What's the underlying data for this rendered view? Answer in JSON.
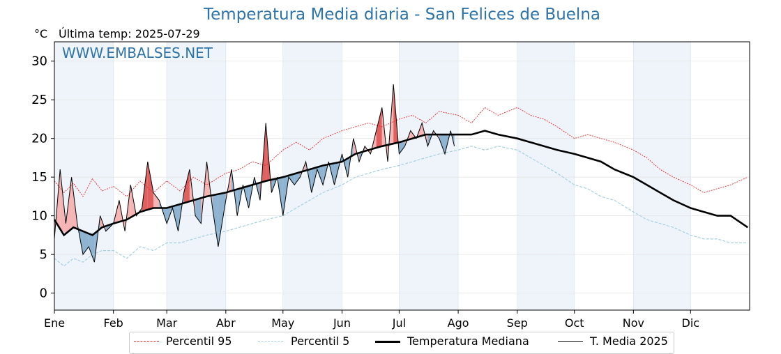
{
  "header": {
    "title": "Temperatura Media diaria - San Felices de Buelna",
    "unit": "°C",
    "last_temp": "Última temp: 2025-07-29",
    "watermark": "WWW.EMBALSES.NET"
  },
  "legend": {
    "p95": "Percentil 95",
    "p5": "Percentil 5",
    "median": "Temperatura Mediana",
    "current": "T. Media 2025"
  },
  "colors": {
    "title": "#2e74a8",
    "p95": "#e8262a",
    "p5": "#a6cfe0",
    "median": "#000000",
    "current": "#000000",
    "above_light": "#f5b5b5",
    "above_strong": "#e06060",
    "below_light": "#8fb4d2",
    "below_strong": "#2c6aa0",
    "band": "#eef4fa"
  },
  "chart_data": {
    "type": "line",
    "title": "Temperatura Media diaria - San Felices de Buelna",
    "xlabel": "",
    "ylabel": "°C",
    "ylim": [
      -2.2,
      32.5
    ],
    "xlim": [
      0,
      365
    ],
    "yticks": [
      0,
      5,
      10,
      15,
      20,
      25,
      30
    ],
    "grid": true,
    "legend_position": "bottom",
    "months": [
      "Ene",
      "Feb",
      "Mar",
      "Abr",
      "May",
      "Jun",
      "Jul",
      "Ago",
      "Sep",
      "Oct",
      "Nov",
      "Dic"
    ],
    "month_starts": [
      0,
      31,
      59,
      90,
      120,
      151,
      181,
      212,
      243,
      273,
      304,
      334
    ],
    "series": [
      {
        "name": "Percentil 95",
        "x": [
          0,
          5,
          10,
          15,
          20,
          25,
          31,
          38,
          45,
          52,
          59,
          66,
          73,
          80,
          90,
          97,
          104,
          111,
          120,
          127,
          134,
          141,
          151,
          158,
          165,
          172,
          181,
          188,
          195,
          202,
          212,
          219,
          226,
          233,
          243,
          250,
          257,
          264,
          273,
          280,
          287,
          294,
          304,
          311,
          318,
          325,
          334,
          341,
          348,
          355,
          364
        ],
        "values": [
          14.5,
          13,
          14.2,
          12.5,
          14.8,
          13.2,
          13.8,
          12.5,
          14.5,
          13,
          14.5,
          13.2,
          15,
          14,
          15.5,
          16,
          17,
          16.5,
          18.5,
          19.5,
          18.5,
          20,
          21,
          21.5,
          22,
          21.5,
          22.5,
          23,
          22,
          23.5,
          23,
          22,
          24,
          23,
          24,
          23,
          22.5,
          21.5,
          20,
          20.5,
          20,
          19.5,
          18.5,
          17.5,
          16,
          15,
          14,
          13,
          13.5,
          14,
          15
        ]
      },
      {
        "name": "Percentil 5",
        "x": [
          0,
          5,
          10,
          15,
          20,
          25,
          31,
          38,
          45,
          52,
          59,
          66,
          73,
          80,
          90,
          97,
          104,
          111,
          120,
          127,
          134,
          141,
          151,
          158,
          165,
          172,
          181,
          188,
          195,
          202,
          212,
          219,
          226,
          233,
          243,
          250,
          257,
          264,
          273,
          280,
          287,
          294,
          304,
          311,
          318,
          325,
          334,
          341,
          348,
          355,
          364
        ],
        "values": [
          4.5,
          3.5,
          4.5,
          4,
          5,
          5.5,
          5.5,
          4.5,
          6,
          5.5,
          6.5,
          6.5,
          7,
          7.5,
          8,
          8.5,
          9,
          9.5,
          10,
          11,
          12,
          13,
          14,
          15,
          15.5,
          16,
          16.5,
          17,
          17.5,
          18,
          18.5,
          19,
          18.5,
          19,
          18.5,
          17.5,
          16.5,
          15.5,
          14,
          13.5,
          12.5,
          12,
          10.5,
          9.5,
          9,
          8.5,
          7.5,
          7,
          7,
          6.5,
          6.5
        ]
      },
      {
        "name": "Temperatura Mediana",
        "x": [
          0,
          5,
          10,
          15,
          20,
          25,
          31,
          38,
          45,
          52,
          59,
          66,
          73,
          80,
          90,
          97,
          104,
          111,
          120,
          127,
          134,
          141,
          151,
          158,
          165,
          172,
          181,
          188,
          195,
          202,
          212,
          219,
          226,
          233,
          243,
          250,
          257,
          264,
          273,
          280,
          287,
          294,
          304,
          311,
          318,
          325,
          334,
          341,
          348,
          355,
          364
        ],
        "values": [
          9.5,
          7.5,
          8.5,
          8,
          7.5,
          8.5,
          9,
          9.5,
          10.5,
          11,
          11,
          11.5,
          12,
          12.5,
          13,
          13.5,
          14,
          14.5,
          15,
          15.5,
          16,
          16.5,
          17,
          18,
          18.5,
          19,
          19.5,
          20,
          20.5,
          20.5,
          20.5,
          20.5,
          21,
          20.5,
          20,
          19.5,
          19,
          18.5,
          18,
          17.5,
          17,
          16,
          15,
          14,
          13,
          12,
          11,
          10.5,
          10,
          10,
          8.5
        ]
      },
      {
        "name": "T. Media 2025",
        "x": [
          0,
          3,
          6,
          9,
          12,
          15,
          18,
          21,
          24,
          27,
          31,
          34,
          37,
          40,
          43,
          46,
          49,
          52,
          55,
          59,
          62,
          65,
          68,
          71,
          74,
          77,
          80,
          83,
          86,
          90,
          93,
          96,
          99,
          102,
          105,
          108,
          111,
          114,
          117,
          120,
          123,
          126,
          129,
          132,
          135,
          138,
          141,
          144,
          147,
          151,
          154,
          157,
          160,
          163,
          166,
          169,
          172,
          175,
          178,
          181,
          184,
          187,
          190,
          193,
          196,
          199,
          202,
          205,
          208,
          210
        ],
        "values": [
          7,
          16,
          9,
          15,
          9,
          5,
          6,
          4,
          10,
          8,
          9,
          12,
          8,
          14,
          10,
          11,
          17,
          13,
          12,
          9,
          11,
          8,
          13,
          16,
          10,
          9,
          17,
          11,
          6,
          12,
          16,
          10,
          14,
          11,
          15,
          12,
          22,
          13,
          15,
          10,
          15,
          14,
          15,
          17,
          13,
          16,
          14,
          17,
          14,
          18,
          15,
          20,
          17,
          19,
          18,
          21,
          24,
          17,
          27,
          18,
          19,
          21,
          20,
          22,
          19,
          21,
          20,
          18,
          21,
          19
        ]
      }
    ]
  }
}
